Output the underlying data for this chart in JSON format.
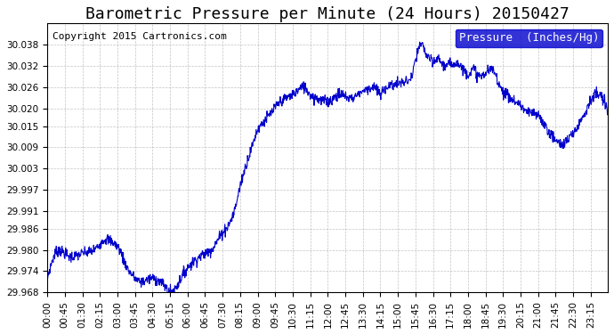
{
  "title": "Barometric Pressure per Minute (24 Hours) 20150427",
  "copyright": "Copyright 2015 Cartronics.com",
  "legend_label": "Pressure  (Inches/Hg)",
  "line_color": "#0000cc",
  "background_color": "#ffffff",
  "grid_color": "#aaaaaa",
  "legend_bg": "#0000cc",
  "legend_text_color": "#ffffff",
  "ylim_min": 29.968,
  "ylim_max": 30.044,
  "yticks": [
    29.968,
    29.974,
    29.98,
    29.986,
    29.991,
    29.997,
    30.003,
    30.009,
    30.015,
    30.02,
    30.026,
    30.032,
    30.038
  ],
  "xtick_labels": [
    "00:00",
    "00:45",
    "01:30",
    "02:15",
    "03:00",
    "03:45",
    "04:30",
    "05:15",
    "06:00",
    "06:45",
    "07:30",
    "08:15",
    "09:00",
    "09:45",
    "10:30",
    "11:15",
    "12:00",
    "12:45",
    "13:30",
    "14:15",
    "15:00",
    "15:45",
    "16:30",
    "17:15",
    "18:00",
    "18:45",
    "19:30",
    "20:15",
    "21:00",
    "21:45",
    "22:30",
    "23:15"
  ],
  "title_fontsize": 13,
  "copyright_fontsize": 8,
  "tick_fontsize": 7.5,
  "legend_fontsize": 9
}
